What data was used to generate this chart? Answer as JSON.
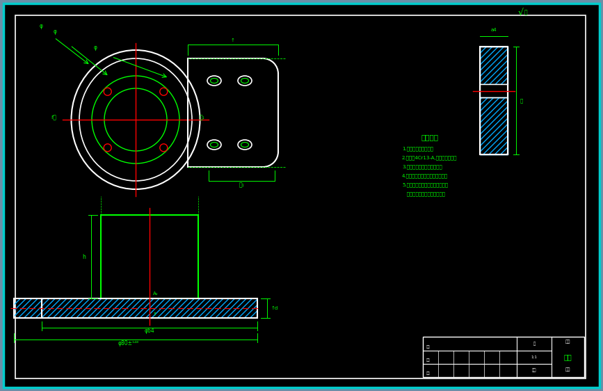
{
  "bg_outer": "#6b8fa8",
  "bg_inner": "#000000",
  "border_cyan": "#00cccc",
  "border_white": "#ffffff",
  "lc": "#00ff00",
  "rc": "#ff0000",
  "wc": "#ffffff",
  "hc": "#00aaff",
  "title_text": "技术要求",
  "tech_lines": [
    "1.零件须去掉锐化处。",
    "2.材料：4Cr13-A,磁存特殊说明。",
    "3.零件须进行高温时效处理。",
    "4.采圆西倒决强烈皮前标涤罗来。",
    "5.零件加工表面上，不应有划痕、",
    "   碰伤等损伤零件表面的缺陷。"
  ],
  "title_block_name": "端盖"
}
